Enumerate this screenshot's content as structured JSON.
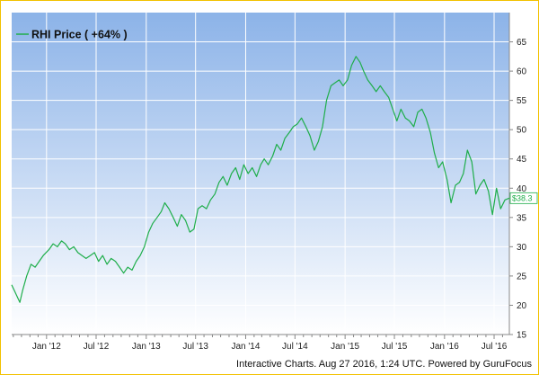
{
  "chart_data": {
    "type": "line",
    "legend": "RHI Price ( +64% )",
    "legend_position": "top-left",
    "last_value_label": "$38.3",
    "credit": "Interactive Charts. Aug 27 2016, 1:24 UTC. Powered by GuruFocus",
    "x_tick_labels": [
      "Jan '12",
      "Jul '12",
      "Jan '13",
      "Jul '13",
      "Jan '14",
      "Jul '14",
      "Jan '15",
      "Jul '15",
      "Jan '16",
      "Jul '16"
    ],
    "x_range": [
      "2011-08-26",
      "2016-08-26"
    ],
    "ylim": [
      15,
      70
    ],
    "y_ticks": [
      15,
      20,
      25,
      30,
      35,
      40,
      45,
      50,
      55,
      60,
      65
    ],
    "grid": true,
    "colors": {
      "line": "#1fae4b",
      "background_top": "#8cb3e8",
      "background_bottom": "#ffffff",
      "frame": "#f2c200"
    },
    "series": [
      {
        "name": "RHI Price",
        "x": [
          "2011-08-26",
          "2011-09-10",
          "2011-09-25",
          "2011-10-05",
          "2011-10-20",
          "2011-11-05",
          "2011-11-20",
          "2011-12-05",
          "2011-12-20",
          "2012-01-10",
          "2012-01-25",
          "2012-02-10",
          "2012-02-25",
          "2012-03-10",
          "2012-03-25",
          "2012-04-10",
          "2012-04-25",
          "2012-05-10",
          "2012-05-25",
          "2012-06-10",
          "2012-06-25",
          "2012-07-10",
          "2012-07-25",
          "2012-08-10",
          "2012-08-25",
          "2012-09-10",
          "2012-09-25",
          "2012-10-10",
          "2012-10-25",
          "2012-11-10",
          "2012-11-25",
          "2012-12-10",
          "2012-12-25",
          "2013-01-10",
          "2013-01-25",
          "2013-02-10",
          "2013-02-25",
          "2013-03-10",
          "2013-03-25",
          "2013-04-10",
          "2013-04-25",
          "2013-05-10",
          "2013-05-25",
          "2013-06-10",
          "2013-06-25",
          "2013-07-10",
          "2013-07-25",
          "2013-08-10",
          "2013-08-25",
          "2013-09-10",
          "2013-09-25",
          "2013-10-10",
          "2013-10-25",
          "2013-11-10",
          "2013-11-25",
          "2013-12-10",
          "2013-12-25",
          "2014-01-10",
          "2014-01-25",
          "2014-02-10",
          "2014-02-25",
          "2014-03-10",
          "2014-03-25",
          "2014-04-10",
          "2014-04-25",
          "2014-05-10",
          "2014-05-25",
          "2014-06-10",
          "2014-06-25",
          "2014-07-10",
          "2014-07-25",
          "2014-08-10",
          "2014-08-25",
          "2014-09-10",
          "2014-09-25",
          "2014-10-10",
          "2014-10-25",
          "2014-11-10",
          "2014-11-25",
          "2014-12-10",
          "2014-12-25",
          "2015-01-10",
          "2015-01-25",
          "2015-02-10",
          "2015-02-25",
          "2015-03-10",
          "2015-03-25",
          "2015-04-10",
          "2015-04-25",
          "2015-05-10",
          "2015-05-25",
          "2015-06-10",
          "2015-06-25",
          "2015-07-10",
          "2015-07-25",
          "2015-08-10",
          "2015-08-25",
          "2015-09-10",
          "2015-09-25",
          "2015-10-10",
          "2015-10-25",
          "2015-11-10",
          "2015-11-25",
          "2015-12-10",
          "2015-12-25",
          "2016-01-10",
          "2016-01-25",
          "2016-02-10",
          "2016-02-25",
          "2016-03-10",
          "2016-03-25",
          "2016-04-10",
          "2016-04-25",
          "2016-05-10",
          "2016-05-25",
          "2016-06-10",
          "2016-06-25",
          "2016-07-10",
          "2016-07-25",
          "2016-08-10",
          "2016-08-26"
        ],
        "y": [
          23.5,
          22.0,
          20.5,
          22.5,
          25.0,
          27.0,
          26.5,
          27.5,
          28.5,
          29.5,
          30.5,
          30.0,
          31.0,
          30.5,
          29.5,
          30.0,
          29.0,
          28.5,
          28.0,
          28.5,
          29.0,
          27.5,
          28.5,
          27.0,
          28.0,
          27.5,
          26.5,
          25.5,
          26.5,
          26.0,
          27.5,
          28.5,
          30.0,
          32.5,
          34.0,
          35.0,
          36.0,
          37.5,
          36.5,
          35.0,
          33.5,
          35.5,
          34.5,
          32.5,
          33.0,
          36.5,
          37.0,
          36.5,
          38.0,
          39.0,
          41.0,
          42.0,
          40.5,
          42.5,
          43.5,
          41.5,
          44.0,
          42.5,
          43.5,
          42.0,
          44.0,
          45.0,
          44.0,
          45.5,
          47.5,
          46.5,
          48.5,
          49.5,
          50.5,
          51.0,
          52.0,
          50.5,
          49.0,
          46.5,
          48.0,
          50.5,
          55.0,
          57.5,
          58.0,
          58.5,
          57.5,
          58.5,
          61.0,
          62.5,
          61.5,
          60.0,
          58.5,
          57.5,
          56.5,
          57.5,
          56.5,
          55.5,
          53.5,
          51.5,
          53.5,
          52.0,
          51.5,
          50.5,
          53.0,
          53.5,
          52.0,
          49.5,
          46.0,
          43.5,
          44.5,
          41.5,
          37.5,
          40.5,
          41.0,
          42.5,
          46.5,
          44.5,
          39.0,
          40.5,
          41.5,
          39.5,
          35.5,
          40.0,
          36.5,
          38.0,
          38.3
        ]
      }
    ]
  }
}
